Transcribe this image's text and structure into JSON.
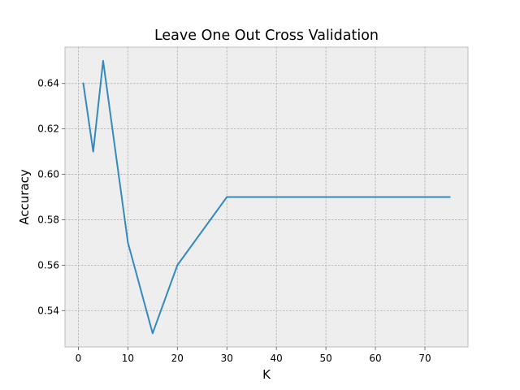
{
  "chart_data": {
    "type": "line",
    "title": "Leave One Out Cross Validation",
    "xlabel": "K",
    "ylabel": "Accuracy",
    "xlim": [
      -2.7,
      78.7
    ],
    "ylim": [
      0.524,
      0.656
    ],
    "xticks": [
      0,
      10,
      20,
      30,
      40,
      50,
      60,
      70
    ],
    "yticks": [
      0.54,
      0.56,
      0.58,
      0.6,
      0.62,
      0.64
    ],
    "grid": true,
    "series": [
      {
        "color": "#348abd",
        "x": [
          1,
          3,
          5,
          10,
          15,
          20,
          30,
          40,
          50,
          60,
          75
        ],
        "y": [
          0.64,
          0.61,
          0.65,
          0.57,
          0.53,
          0.56,
          0.59,
          0.59,
          0.59,
          0.59,
          0.59
        ]
      }
    ],
    "colors": {
      "plot_background": "#eeeeee",
      "axes_edge": "#bcbcbc"
    }
  }
}
